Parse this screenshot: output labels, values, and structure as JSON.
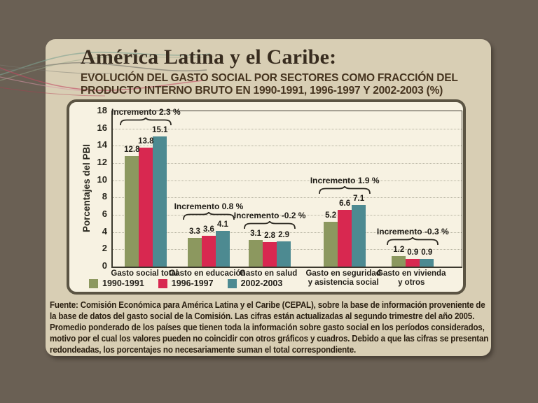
{
  "slide": {
    "title": "América Latina y el Caribe:",
    "subtitle_line1": "EVOLUCIÓN DEL GASTO SOCIAL POR SECTORES COMO FRACCIÓN DEL",
    "subtitle_line2": "PRODUCTO INTERNO BRUTO EN 1990-1991, 1996-1997 Y 2002-2003 (%)"
  },
  "chart_data": {
    "type": "bar",
    "ylabel": "Porcentajes del PBI",
    "ylim": [
      0,
      18
    ],
    "ytick_step": 2,
    "grid": "horizontal-dotted",
    "legend_position": "bottom-left",
    "categories": [
      "Gasto social total",
      "Gasto en educación",
      "Gasto en salud",
      "Gasto en seguridad\ny asistencia social",
      "Gasto en vivienda\ny otros"
    ],
    "series": [
      {
        "name": "1990-1991",
        "color": "#8c985f",
        "values": [
          12.8,
          3.3,
          3.1,
          5.2,
          1.2
        ]
      },
      {
        "name": "1996-1997",
        "color": "#d82850",
        "values": [
          13.8,
          3.6,
          2.8,
          6.6,
          0.9
        ]
      },
      {
        "name": "2002-2003",
        "color": "#4d8a91",
        "values": [
          15.1,
          4.1,
          2.9,
          7.1,
          0.9
        ]
      }
    ],
    "annotations": [
      {
        "group": 0,
        "label": "Incremento 2.3 %"
      },
      {
        "group": 1,
        "label": "Incremento 0.8 %"
      },
      {
        "group": 2,
        "label": "Incremento -0.2 %"
      },
      {
        "group": 3,
        "label": "Incremento 1.9 %"
      },
      {
        "group": 4,
        "label": "Incremento -0.3 %"
      }
    ]
  },
  "footer": {
    "source_label": "Fuente:",
    "source_text": "Comisión Económica para América Latina y el Caribe (CEPAL), sobre la base de información proveniente de la base de datos del gasto social de la Comisión. Las cifras están actualizadas al segundo trimestre del año 2005.",
    "note_text": "Promedio ponderado de los países que tienen toda la información sobre gasto social en los períodos considerados, motivo por el cual los valores pueden no coincidir con otros gráficos y cuadros. Debido a que las cifras se presentan redondeadas, los porcentajes no necesariamente suman el total correspondiente."
  },
  "theme": {
    "page_bg": "#6a6054",
    "panel_bg": "#d8ceb4",
    "chart_bg": "#f7f2e2",
    "chart_border": "#5b5443",
    "axis_color": "#3c392e",
    "grid_color": "#b3b09e",
    "green": "#8c985f",
    "red": "#d82850",
    "teal": "#4d8a91"
  }
}
